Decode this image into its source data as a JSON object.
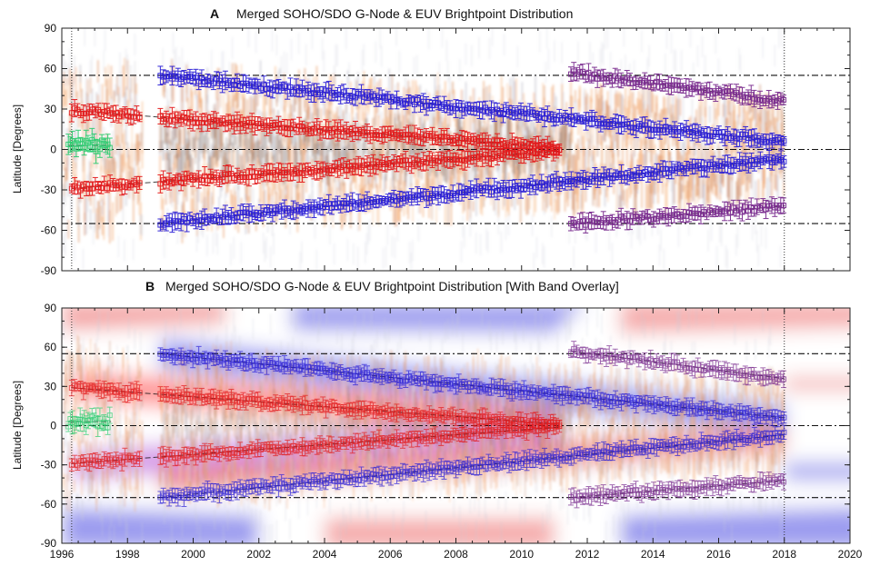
{
  "chart_data": [
    {
      "type": "scatter",
      "panel_label": "A",
      "title": "Merged SOHO/SDO G-Node & EUV Brightpoint Distribution",
      "xlabel": "",
      "ylabel": "Latitude [Degrees]",
      "xlim": [
        1996,
        2020
      ],
      "ylim": [
        -90,
        90
      ],
      "yticks": [
        "90",
        "60",
        "30",
        "0",
        "-30",
        "-60",
        "-90"
      ],
      "reference_lines": [
        55,
        0,
        -55
      ],
      "vertical_reference_lines": [
        1996.3,
        2018
      ],
      "band_overlay": false,
      "series": [
        {
          "color": "#e31a1c",
          "x": [
            1996.3,
            2011.2
          ],
          "y": [
            29,
            1
          ]
        },
        {
          "color": "#e31a1c",
          "x": [
            1996.3,
            2011.2
          ],
          "y": [
            -29,
            -1
          ]
        },
        {
          "color": "#2b1fd6",
          "x": [
            1999.0,
            2018.0
          ],
          "y": [
            55,
            6
          ]
        },
        {
          "color": "#2b1fd6",
          "x": [
            1999.0,
            2018.0
          ],
          "y": [
            -55,
            -7
          ]
        },
        {
          "color": "#7a2c8f",
          "x": [
            2011.5,
            2018.0
          ],
          "y": [
            57,
            36
          ]
        },
        {
          "color": "#7a2c8f",
          "x": [
            2011.5,
            2018.0
          ],
          "y": [
            -55,
            -42
          ]
        },
        {
          "color": "#2ecc71",
          "x": [
            1996.2,
            1997.5
          ],
          "y": [
            3,
            3
          ]
        }
      ]
    },
    {
      "type": "scatter",
      "panel_label": "B",
      "title": "Merged SOHO/SDO G-Node & EUV Brightpoint Distribution [With Band Overlay]",
      "xlabel": "",
      "ylabel": "Latitude [Degrees]",
      "xlim": [
        1996,
        2020
      ],
      "ylim": [
        -90,
        90
      ],
      "yticks": [
        "90",
        "60",
        "30",
        "0",
        "-30",
        "-60",
        "-90"
      ],
      "xticks": [
        "1996",
        "1998",
        "2000",
        "2002",
        "2004",
        "2006",
        "2008",
        "2010",
        "2012",
        "2014",
        "2016",
        "2018",
        "2020"
      ],
      "reference_lines": [
        55,
        0,
        -55
      ],
      "vertical_reference_lines": [
        1996.3,
        2018
      ],
      "band_overlay": true,
      "series": [
        {
          "color": "#e31a1c",
          "x": [
            1996.3,
            2011.2
          ],
          "y": [
            29,
            1
          ]
        },
        {
          "color": "#e31a1c",
          "x": [
            1996.3,
            2011.2
          ],
          "y": [
            -29,
            -1
          ]
        },
        {
          "color": "#2b1fd6",
          "x": [
            1999.0,
            2018.0
          ],
          "y": [
            55,
            6
          ]
        },
        {
          "color": "#2b1fd6",
          "x": [
            1999.0,
            2018.0
          ],
          "y": [
            -55,
            -7
          ]
        },
        {
          "color": "#7a2c8f",
          "x": [
            2011.5,
            2018.0
          ],
          "y": [
            57,
            36
          ]
        },
        {
          "color": "#7a2c8f",
          "x": [
            2011.5,
            2018.0
          ],
          "y": [
            -55,
            -42
          ]
        },
        {
          "color": "#2ecc71",
          "x": [
            1996.2,
            1997.5
          ],
          "y": [
            3,
            3
          ]
        }
      ]
    }
  ]
}
